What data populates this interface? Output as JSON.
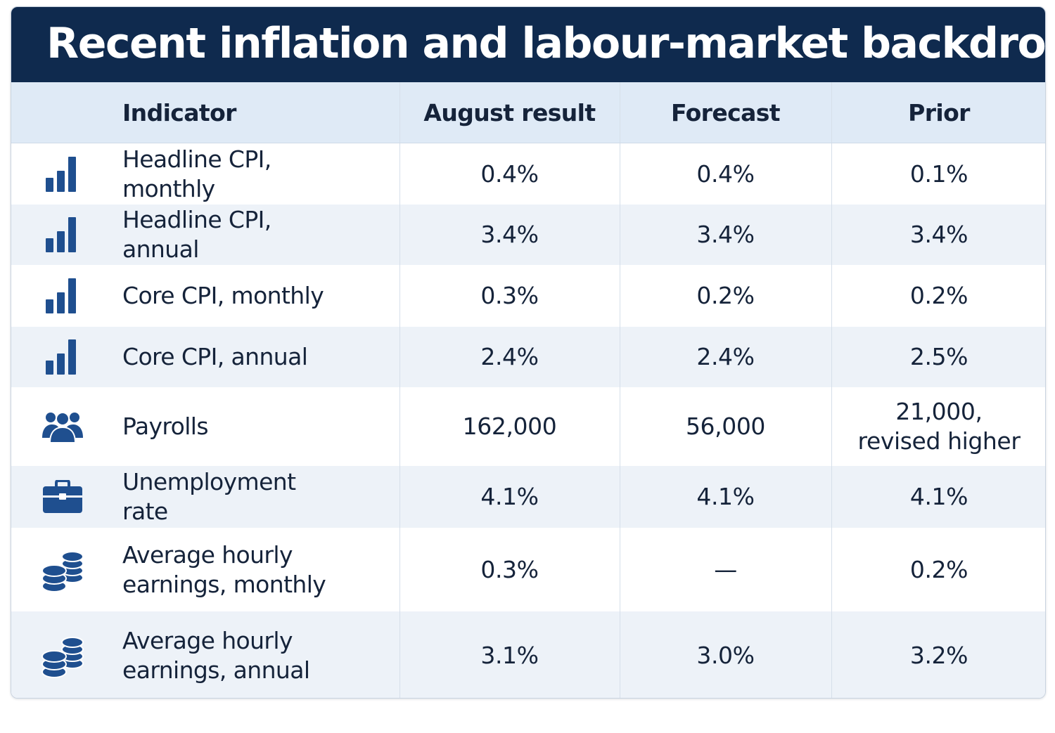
{
  "title": "Recent inflation and labour-market backdrop",
  "chart_data": {
    "type": "table",
    "title": "Recent inflation and labour-market backdrop",
    "columns": [
      "Indicator",
      "August result",
      "Forecast",
      "Prior"
    ],
    "rows": [
      {
        "icon": "bar-chart-icon",
        "indicator": "Headline CPI, monthly",
        "august": "0.4%",
        "forecast": "0.4%",
        "prior": "0.1%"
      },
      {
        "icon": "bar-chart-icon",
        "indicator": "Headline CPI, annual",
        "august": "3.4%",
        "forecast": "3.4%",
        "prior": "3.4%"
      },
      {
        "icon": "bar-chart-icon",
        "indicator": "Core CPI, monthly",
        "august": "0.3%",
        "forecast": "0.2%",
        "prior": "0.2%"
      },
      {
        "icon": "bar-chart-icon",
        "indicator": "Core CPI, annual",
        "august": "2.4%",
        "forecast": "2.4%",
        "prior": "2.5%"
      },
      {
        "icon": "people-icon",
        "indicator": "Payrolls",
        "august": "162,000",
        "forecast": "56,000",
        "prior": "21,000, revised higher"
      },
      {
        "icon": "briefcase-icon",
        "indicator": "Unemployment rate",
        "august": "4.1%",
        "forecast": "4.1%",
        "prior": "4.1%"
      },
      {
        "icon": "coins-icon",
        "indicator": "Average hourly earnings, monthly",
        "august": "0.3%",
        "forecast": "—",
        "prior": "0.2%"
      },
      {
        "icon": "coins-icon",
        "indicator": "Average hourly earnings, annual",
        "august": "3.1%",
        "forecast": "3.0%",
        "prior": "3.2%"
      }
    ]
  },
  "colors": {
    "title_bar": "#0f2a4e",
    "header_row": "#dfeaf6",
    "alt_row": "#edf2f8",
    "icon": "#1f4f8f",
    "text": "#15233a"
  }
}
